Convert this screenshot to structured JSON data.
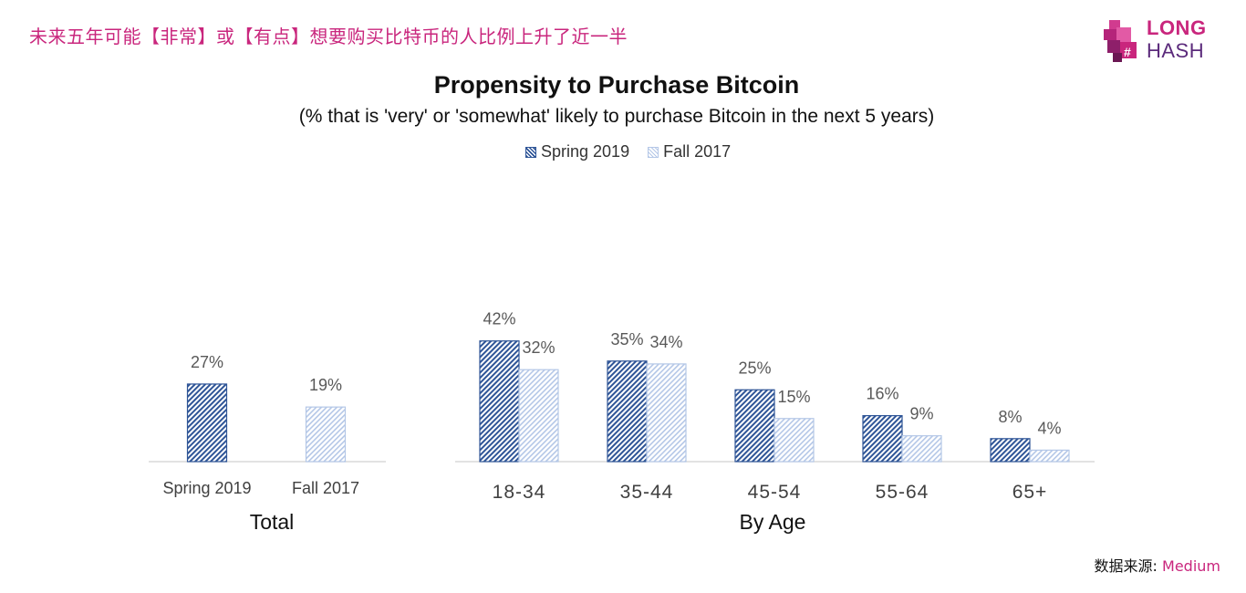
{
  "headline": "未来五年可能【非常】或【有点】想要购买比特币的人比例上升了近一半",
  "logo": {
    "line1": "LONG",
    "line2": "HASH"
  },
  "source": {
    "label": "数据来源:",
    "name": "Medium"
  },
  "colors": {
    "headline": "#c9267d",
    "spring": "#2f5597",
    "fall": "#b4c7e7"
  },
  "chart_data": {
    "type": "bar",
    "title": "Propensity to Purchase Bitcoin",
    "subtitle": "(% that is 'very' or 'somewhat' likely to purchase Bitcoin in the next 5 years)",
    "legend": [
      {
        "name": "Spring 2019",
        "pattern": "dark-hatch"
      },
      {
        "name": "Fall 2017",
        "pattern": "light-hatch"
      }
    ],
    "legend_position": "top-center",
    "grid": false,
    "value_unit": "%",
    "panels": [
      {
        "title": "Total",
        "categories": [
          "Spring 2019",
          "Fall 2017"
        ],
        "values": [
          27,
          19
        ],
        "labels": [
          "27%",
          "19%"
        ]
      },
      {
        "title": "By Age",
        "categories": [
          "18-34",
          "35-44",
          "45-54",
          "55-64",
          "65+"
        ],
        "series": [
          {
            "name": "Spring 2019",
            "values": [
              42,
              35,
              25,
              16,
              8
            ],
            "labels": [
              "42%",
              "35%",
              "25%",
              "16%",
              "8%"
            ]
          },
          {
            "name": "Fall 2017",
            "values": [
              32,
              34,
              15,
              9,
              4
            ],
            "labels": [
              "32%",
              "34%",
              "15%",
              "9%",
              "4%"
            ]
          }
        ]
      }
    ]
  }
}
